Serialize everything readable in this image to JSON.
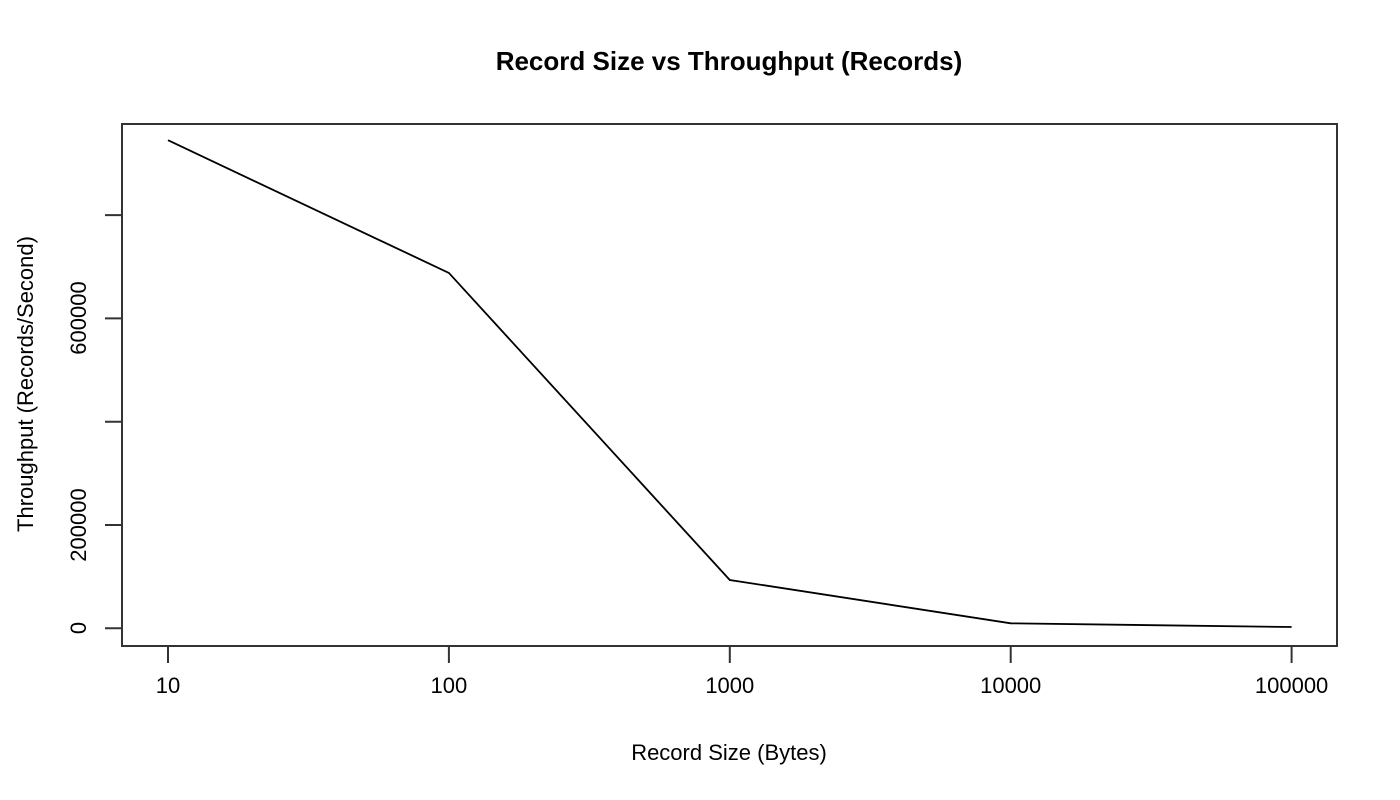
{
  "page": {
    "background": "#ffffff"
  },
  "chart_data": {
    "type": "line",
    "title": "Record Size vs Throughput (Records)",
    "xlabel": "Record Size (Bytes)",
    "ylabel": "Throughput (Records/Second)",
    "x_scale": "log10",
    "x": [
      10,
      100,
      1000,
      10000,
      100000
    ],
    "series": [
      {
        "name": "throughput",
        "values": [
          945000,
          688000,
          93500,
          9700,
          2500
        ]
      }
    ],
    "x_ticks": [
      {
        "value": 10,
        "label": "10"
      },
      {
        "value": 100,
        "label": "100"
      },
      {
        "value": 1000,
        "label": "1000"
      },
      {
        "value": 10000,
        "label": "10000"
      },
      {
        "value": 100000,
        "label": "100000"
      }
    ],
    "y_ticks": [
      {
        "value": 0,
        "label": "0"
      },
      {
        "value": 200000,
        "label": "200000"
      },
      {
        "value": 400000,
        "label": ""
      },
      {
        "value": 600000,
        "label": "600000"
      },
      {
        "value": 800000,
        "label": ""
      }
    ],
    "xlim_log": [
      0.84,
      5.16
    ],
    "ylim": [
      -34000,
      976000
    ],
    "grid": false,
    "legend": null,
    "colors": {
      "line": "#000000",
      "axis": "#333333",
      "text": "#000000"
    }
  }
}
